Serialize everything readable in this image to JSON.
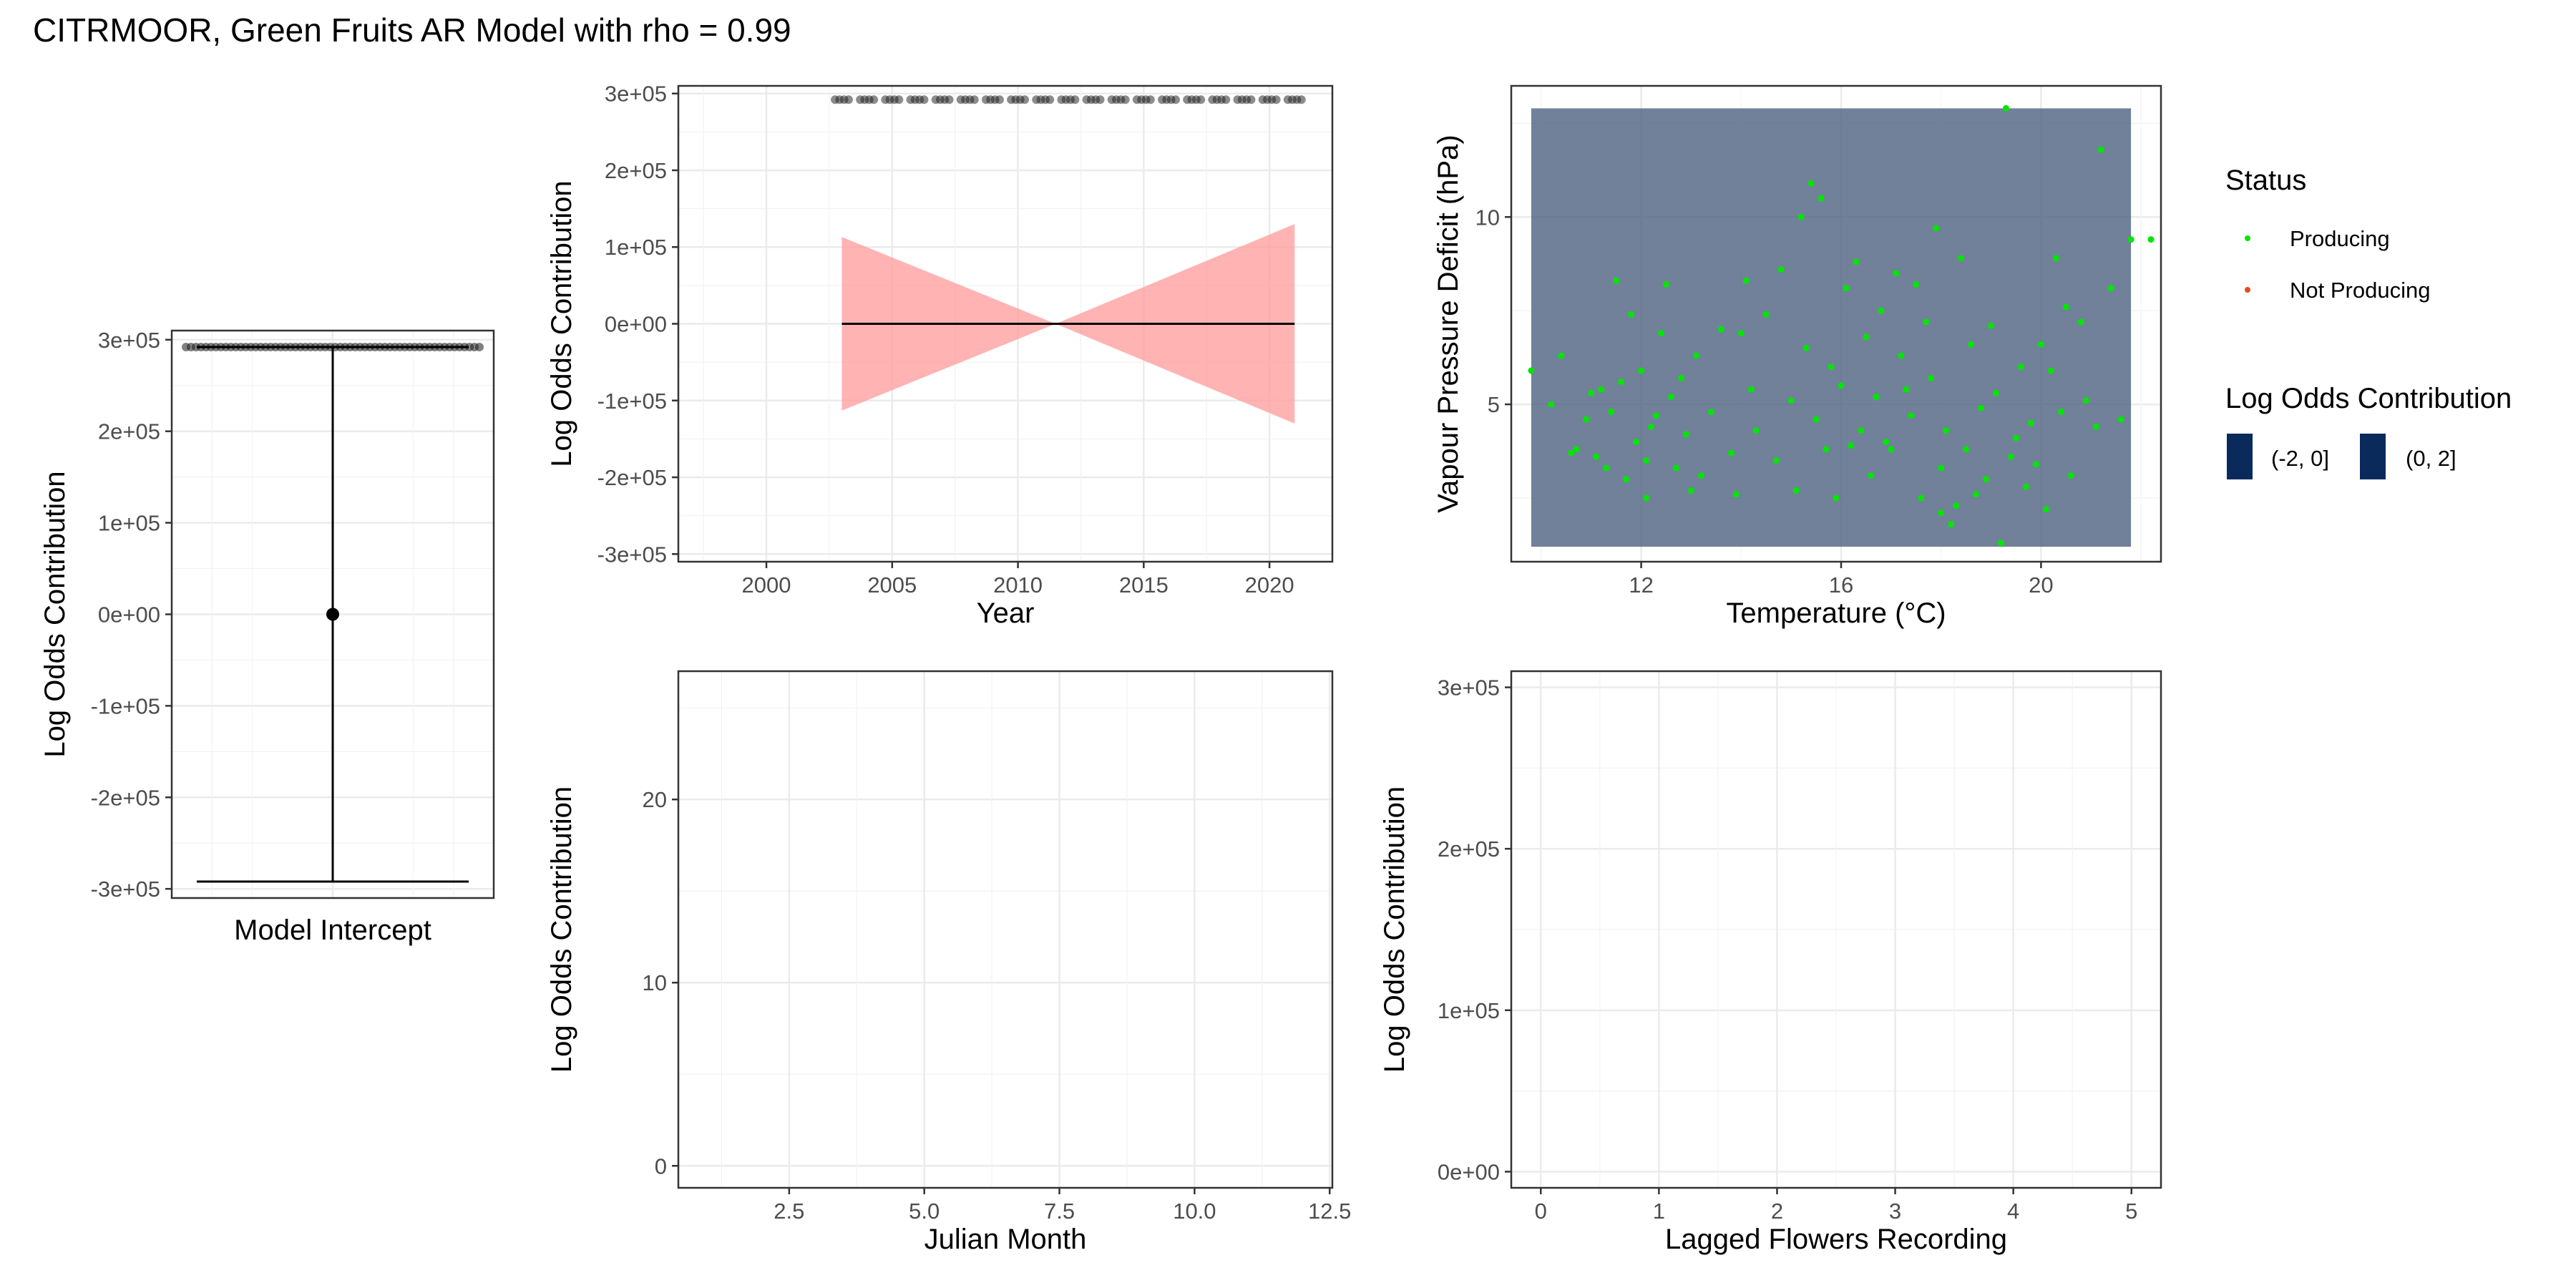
{
  "title": "CITRMOOR, Green Fruits AR Model with rho = 0.99",
  "colors": {
    "producing": "#00e600",
    "not_producing": "#e64a19",
    "ribbon": "#ff9a9a",
    "band": "#4d6180",
    "legend_fill": "#0a2a5c",
    "point": "#1a1a1a"
  },
  "legend": {
    "status_title": "Status",
    "status_items": [
      {
        "label": "Producing",
        "color": "#00e600"
      },
      {
        "label": "Not Producing",
        "color": "#e64a19"
      }
    ],
    "contrib_title": "Log Odds Contribution",
    "contrib_items": [
      {
        "label": "(-2, 0]",
        "color": "#0a2a5c"
      },
      {
        "label": "(0, 2]",
        "color": "#0a2a5c"
      }
    ]
  },
  "chart_data": [
    {
      "id": "intercept",
      "type": "scatter",
      "xlabel": "Model Intercept",
      "ylabel": "Log Odds Contribution",
      "ylim": [
        -310000,
        310000
      ],
      "yticks": [
        -300000,
        -200000,
        -100000,
        0,
        100000,
        200000,
        300000
      ],
      "ytick_labels": [
        "-3e+05",
        "-2e+05",
        "-1e+05",
        "0e+00",
        "1e+05",
        "2e+05",
        "3e+05"
      ],
      "estimate": 0,
      "interval": [
        -292000,
        292000
      ],
      "rug_value": 292000,
      "grid": true
    },
    {
      "id": "year",
      "type": "line",
      "xlabel": "Year",
      "ylabel": "Log Odds Contribution",
      "xlim": [
        1996.5,
        2022.5
      ],
      "ylim": [
        -310000,
        310000
      ],
      "xticks": [
        2000,
        2005,
        2010,
        2015,
        2020
      ],
      "xtick_labels": [
        "2000",
        "2005",
        "2010",
        "2015",
        "2020"
      ],
      "yticks": [
        -300000,
        -200000,
        -100000,
        0,
        100000,
        200000,
        300000
      ],
      "ytick_labels": [
        "-3e+05",
        "-2e+05",
        "-1e+05",
        "0e+00",
        "1e+05",
        "2e+05",
        "3e+05"
      ],
      "line": {
        "x": [
          2003,
          2021
        ],
        "y": [
          0,
          0
        ]
      },
      "ribbon": {
        "x": [
          2003,
          2011.5,
          2021
        ],
        "lower": [
          -113000,
          0,
          -130000
        ],
        "upper": [
          113000,
          0,
          130000
        ]
      },
      "rug_value": 292000,
      "rug_years": [
        2003,
        2004,
        2005,
        2006,
        2007,
        2008,
        2009,
        2010,
        2011,
        2012,
        2013,
        2014,
        2015,
        2016,
        2017,
        2018,
        2019,
        2020,
        2021
      ],
      "grid": true
    },
    {
      "id": "temperature",
      "type": "scatter",
      "xlabel": "Temperature (°C)",
      "ylabel": "Vapour Pressure Deficit (hPa)",
      "xlim": [
        9.4,
        22.4
      ],
      "ylim": [
        0.8,
        13.5
      ],
      "xticks": [
        12,
        16,
        20
      ],
      "xtick_labels": [
        "12",
        "16",
        "20"
      ],
      "yticks": [
        5,
        10
      ],
      "ytick_labels": [
        "5",
        "10"
      ],
      "band": {
        "x": [
          9.8,
          21.8
        ],
        "y": [
          1.2,
          12.9
        ],
        "category": "(-2, 0]"
      },
      "series": [
        {
          "name": "Producing",
          "points": [
            [
              9.8,
              5.9
            ],
            [
              10.2,
              5.0
            ],
            [
              10.4,
              6.3
            ],
            [
              10.6,
              3.7
            ],
            [
              10.7,
              3.8
            ],
            [
              10.9,
              4.6
            ],
            [
              11.0,
              5.3
            ],
            [
              11.1,
              3.6
            ],
            [
              11.2,
              5.4
            ],
            [
              11.3,
              3.3
            ],
            [
              11.4,
              4.8
            ],
            [
              11.5,
              8.3
            ],
            [
              11.6,
              5.6
            ],
            [
              11.7,
              3.0
            ],
            [
              11.8,
              7.4
            ],
            [
              11.9,
              4.0
            ],
            [
              12.0,
              5.9
            ],
            [
              12.1,
              3.5
            ],
            [
              12.1,
              2.5
            ],
            [
              12.2,
              4.4
            ],
            [
              12.3,
              4.7
            ],
            [
              12.4,
              6.9
            ],
            [
              12.5,
              8.2
            ],
            [
              12.6,
              5.2
            ],
            [
              12.7,
              3.3
            ],
            [
              12.8,
              5.7
            ],
            [
              12.9,
              4.2
            ],
            [
              13.0,
              2.7
            ],
            [
              13.1,
              6.3
            ],
            [
              13.2,
              3.1
            ],
            [
              13.4,
              4.8
            ],
            [
              13.6,
              7.0
            ],
            [
              13.8,
              3.7
            ],
            [
              13.9,
              2.6
            ],
            [
              14.0,
              6.9
            ],
            [
              14.1,
              8.3
            ],
            [
              14.2,
              5.4
            ],
            [
              14.3,
              4.3
            ],
            [
              14.5,
              7.4
            ],
            [
              14.7,
              3.5
            ],
            [
              14.8,
              8.6
            ],
            [
              15.0,
              5.1
            ],
            [
              15.1,
              2.7
            ],
            [
              15.2,
              10.0
            ],
            [
              15.3,
              6.5
            ],
            [
              15.4,
              10.9
            ],
            [
              15.5,
              4.6
            ],
            [
              15.6,
              10.5
            ],
            [
              15.7,
              3.8
            ],
            [
              15.8,
              6.0
            ],
            [
              15.9,
              2.5
            ],
            [
              16.0,
              5.5
            ],
            [
              16.1,
              8.1
            ],
            [
              16.2,
              3.9
            ],
            [
              16.3,
              8.8
            ],
            [
              16.4,
              4.3
            ],
            [
              16.5,
              6.8
            ],
            [
              16.6,
              3.1
            ],
            [
              16.7,
              5.2
            ],
            [
              16.8,
              7.5
            ],
            [
              16.9,
              4.0
            ],
            [
              17.0,
              3.8
            ],
            [
              17.1,
              8.5
            ],
            [
              17.2,
              6.3
            ],
            [
              17.3,
              5.4
            ],
            [
              17.4,
              4.7
            ],
            [
              17.5,
              8.2
            ],
            [
              17.6,
              2.5
            ],
            [
              17.7,
              7.2
            ],
            [
              17.8,
              5.7
            ],
            [
              17.9,
              9.7
            ],
            [
              18.0,
              3.3
            ],
            [
              18.0,
              2.1
            ],
            [
              18.1,
              4.3
            ],
            [
              18.2,
              1.8
            ],
            [
              18.3,
              2.3
            ],
            [
              18.4,
              8.9
            ],
            [
              18.5,
              3.8
            ],
            [
              18.6,
              6.6
            ],
            [
              18.7,
              2.6
            ],
            [
              18.8,
              4.9
            ],
            [
              18.9,
              3.0
            ],
            [
              19.0,
              7.1
            ],
            [
              19.1,
              5.3
            ],
            [
              19.2,
              1.3
            ],
            [
              19.3,
              12.9
            ],
            [
              19.4,
              3.6
            ],
            [
              19.5,
              4.1
            ],
            [
              19.6,
              6.0
            ],
            [
              19.7,
              2.8
            ],
            [
              19.8,
              4.5
            ],
            [
              19.9,
              3.4
            ],
            [
              20.0,
              6.6
            ],
            [
              20.1,
              2.2
            ],
            [
              20.2,
              5.9
            ],
            [
              20.3,
              8.9
            ],
            [
              20.4,
              4.8
            ],
            [
              20.5,
              7.6
            ],
            [
              20.6,
              3.1
            ],
            [
              20.8,
              7.2
            ],
            [
              20.9,
              5.1
            ],
            [
              21.1,
              4.4
            ],
            [
              21.2,
              11.8
            ],
            [
              21.4,
              8.1
            ],
            [
              21.6,
              4.6
            ],
            [
              21.8,
              9.4
            ],
            [
              22.2,
              9.4
            ]
          ]
        },
        {
          "name": "Not Producing",
          "points": []
        }
      ],
      "grid": true
    },
    {
      "id": "julian_month",
      "type": "line",
      "xlabel": "Julian Month",
      "ylabel": "Log Odds Contribution",
      "xlim": [
        0.45,
        12.55
      ],
      "ylim": [
        -1.2,
        27
      ],
      "xticks": [
        2.5,
        5.0,
        7.5,
        10.0,
        12.5
      ],
      "xtick_labels": [
        "2.5",
        "5.0",
        "7.5",
        "10.0",
        "12.5"
      ],
      "yticks": [
        0,
        10,
        20
      ],
      "ytick_labels": [
        "0",
        "10",
        "20"
      ],
      "grid": true
    },
    {
      "id": "lagged_flowers",
      "type": "line",
      "xlabel": "Lagged Flowers Recording",
      "ylabel": "Log Odds Contribution",
      "xlim": [
        -0.25,
        5.25
      ],
      "ylim": [
        -10000,
        310000
      ],
      "xticks": [
        0,
        1,
        2,
        3,
        4,
        5
      ],
      "xtick_labels": [
        "0",
        "1",
        "2",
        "3",
        "4",
        "5"
      ],
      "yticks": [
        0,
        100000,
        200000,
        300000
      ],
      "ytick_labels": [
        "0e+00",
        "1e+05",
        "2e+05",
        "3e+05"
      ],
      "grid": true
    }
  ]
}
